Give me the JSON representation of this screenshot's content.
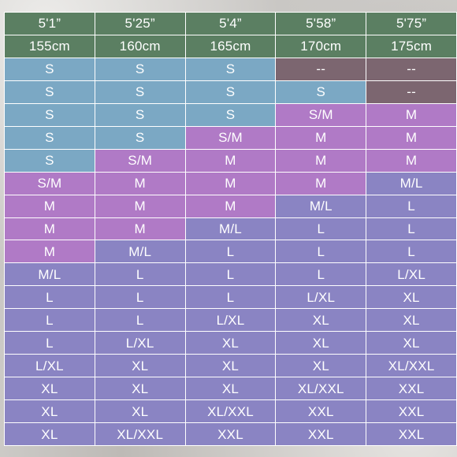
{
  "colors": {
    "header": "#5b7f62",
    "blue": "#7ba8c4",
    "purple": "#b07ac6",
    "indigo": "#8a84c3",
    "grey": "#7c6670"
  },
  "heights_ft": [
    "5'1”",
    "5'25”",
    "5'4”",
    "5'58”",
    "5'75”"
  ],
  "heights_cm": [
    "155cm",
    "160cm",
    "165cm",
    "170cm",
    "175cm"
  ],
  "rows": [
    [
      [
        "S",
        "blue"
      ],
      [
        "S",
        "blue"
      ],
      [
        "S",
        "blue"
      ],
      [
        "--",
        "grey"
      ],
      [
        "--",
        "grey"
      ]
    ],
    [
      [
        "S",
        "blue"
      ],
      [
        "S",
        "blue"
      ],
      [
        "S",
        "blue"
      ],
      [
        "S",
        "blue"
      ],
      [
        "--",
        "grey"
      ]
    ],
    [
      [
        "S",
        "blue"
      ],
      [
        "S",
        "blue"
      ],
      [
        "S",
        "blue"
      ],
      [
        "S/M",
        "purple"
      ],
      [
        "M",
        "purple"
      ]
    ],
    [
      [
        "S",
        "blue"
      ],
      [
        "S",
        "blue"
      ],
      [
        "S/M",
        "purple"
      ],
      [
        "M",
        "purple"
      ],
      [
        "M",
        "purple"
      ]
    ],
    [
      [
        "S",
        "blue"
      ],
      [
        "S/M",
        "purple"
      ],
      [
        "M",
        "purple"
      ],
      [
        "M",
        "purple"
      ],
      [
        "M",
        "purple"
      ]
    ],
    [
      [
        "S/M",
        "purple"
      ],
      [
        "M",
        "purple"
      ],
      [
        "M",
        "purple"
      ],
      [
        "M",
        "purple"
      ],
      [
        "M/L",
        "indigo"
      ]
    ],
    [
      [
        "M",
        "purple"
      ],
      [
        "M",
        "purple"
      ],
      [
        "M",
        "purple"
      ],
      [
        "M/L",
        "indigo"
      ],
      [
        "L",
        "indigo"
      ]
    ],
    [
      [
        "M",
        "purple"
      ],
      [
        "M",
        "purple"
      ],
      [
        "M/L",
        "indigo"
      ],
      [
        "L",
        "indigo"
      ],
      [
        "L",
        "indigo"
      ]
    ],
    [
      [
        "M",
        "purple"
      ],
      [
        "M/L",
        "indigo"
      ],
      [
        "L",
        "indigo"
      ],
      [
        "L",
        "indigo"
      ],
      [
        "L",
        "indigo"
      ]
    ],
    [
      [
        "M/L",
        "indigo"
      ],
      [
        "L",
        "indigo"
      ],
      [
        "L",
        "indigo"
      ],
      [
        "L",
        "indigo"
      ],
      [
        "L/XL",
        "indigo"
      ]
    ],
    [
      [
        "L",
        "indigo"
      ],
      [
        "L",
        "indigo"
      ],
      [
        "L",
        "indigo"
      ],
      [
        "L/XL",
        "indigo"
      ],
      [
        "XL",
        "indigo"
      ]
    ],
    [
      [
        "L",
        "indigo"
      ],
      [
        "L",
        "indigo"
      ],
      [
        "L/XL",
        "indigo"
      ],
      [
        "XL",
        "indigo"
      ],
      [
        "XL",
        "indigo"
      ]
    ],
    [
      [
        "L",
        "indigo"
      ],
      [
        "L/XL",
        "indigo"
      ],
      [
        "XL",
        "indigo"
      ],
      [
        "XL",
        "indigo"
      ],
      [
        "XL",
        "indigo"
      ]
    ],
    [
      [
        "L/XL",
        "indigo"
      ],
      [
        "XL",
        "indigo"
      ],
      [
        "XL",
        "indigo"
      ],
      [
        "XL",
        "indigo"
      ],
      [
        "XL/XXL",
        "indigo"
      ]
    ],
    [
      [
        "XL",
        "indigo"
      ],
      [
        "XL",
        "indigo"
      ],
      [
        "XL",
        "indigo"
      ],
      [
        "XL/XXL",
        "indigo"
      ],
      [
        "XXL",
        "indigo"
      ]
    ],
    [
      [
        "XL",
        "indigo"
      ],
      [
        "XL",
        "indigo"
      ],
      [
        "XL/XXL",
        "indigo"
      ],
      [
        "XXL",
        "indigo"
      ],
      [
        "XXL",
        "indigo"
      ]
    ],
    [
      [
        "XL",
        "indigo"
      ],
      [
        "XL/XXL",
        "indigo"
      ],
      [
        "XXL",
        "indigo"
      ],
      [
        "XXL",
        "indigo"
      ],
      [
        "XXL",
        "indigo"
      ]
    ]
  ]
}
